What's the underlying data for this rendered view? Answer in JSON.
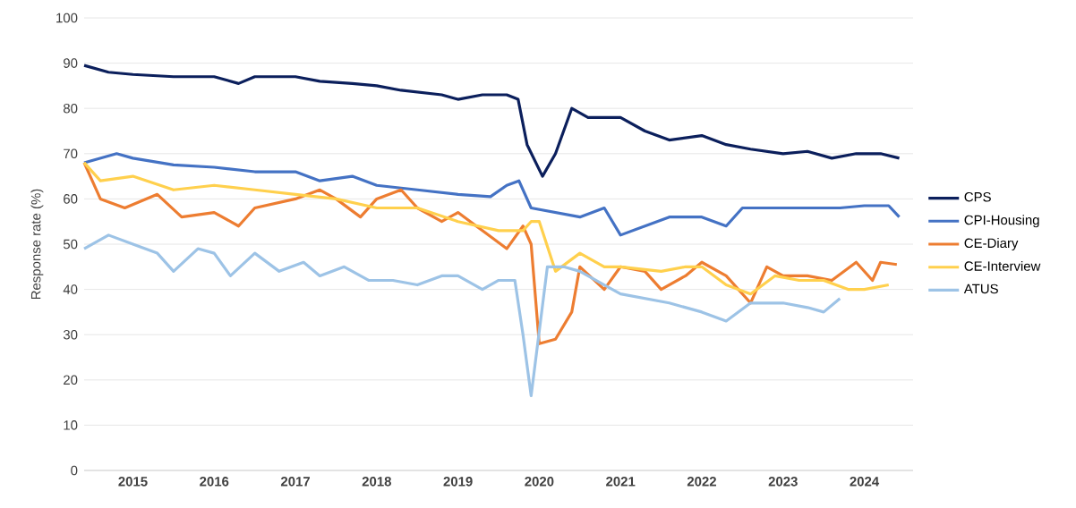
{
  "chart_data": {
    "type": "line",
    "ylabel": "Response rate (%)",
    "xlim": [
      2014.4,
      2024.6
    ],
    "xticks": [
      2015,
      2016,
      2017,
      2018,
      2019,
      2020,
      2021,
      2022,
      2023,
      2024
    ],
    "ylim": [
      0,
      100
    ],
    "yticks": [
      0,
      10,
      20,
      30,
      40,
      50,
      60,
      70,
      80,
      90,
      100
    ],
    "grid": "y",
    "legend": "right",
    "marker": "none",
    "line_style": "solid",
    "series": [
      {
        "name": "CPS",
        "color": "#0b1f5c",
        "x": [
          2014.4,
          2014.7,
          2015.0,
          2015.5,
          2016.0,
          2016.3,
          2016.5,
          2017.0,
          2017.3,
          2017.7,
          2018.0,
          2018.3,
          2018.8,
          2019.0,
          2019.3,
          2019.6,
          2019.74,
          2019.85,
          2020.04,
          2020.2,
          2020.4,
          2020.6,
          2021.0,
          2021.3,
          2021.6,
          2022.0,
          2022.3,
          2022.6,
          2023.0,
          2023.3,
          2023.6,
          2023.9,
          2024.2,
          2024.43
        ],
        "values": [
          89.5,
          88,
          87.5,
          87,
          87,
          85.5,
          87,
          87,
          86,
          85.5,
          85,
          84,
          83,
          82,
          83,
          83,
          82,
          72,
          65,
          70,
          80,
          78,
          78,
          75,
          73,
          74,
          72,
          71,
          70,
          70.5,
          69,
          70,
          70,
          69
        ]
      },
      {
        "name": "CPI-Housing",
        "color": "#4472c4",
        "x": [
          2014.4,
          2014.8,
          2015.0,
          2015.5,
          2016.0,
          2016.5,
          2017.0,
          2017.3,
          2017.7,
          2018.0,
          2018.5,
          2019.0,
          2019.4,
          2019.6,
          2019.75,
          2019.9,
          2020.2,
          2020.5,
          2020.8,
          2021.0,
          2021.3,
          2021.6,
          2022.0,
          2022.3,
          2022.5,
          2022.8,
          2023.0,
          2023.3,
          2023.7,
          2024.0,
          2024.3,
          2024.43
        ],
        "values": [
          68,
          70,
          69,
          67.5,
          67,
          66,
          66,
          64,
          65,
          63,
          62,
          61,
          60.5,
          63,
          64,
          58,
          57,
          56,
          58,
          52,
          54,
          56,
          56,
          54,
          58,
          58,
          58,
          58,
          58,
          58.5,
          58.5,
          56
        ]
      },
      {
        "name": "CE-Diary",
        "color": "#ed7d31",
        "x": [
          2014.4,
          2014.6,
          2014.9,
          2015.3,
          2015.6,
          2016.0,
          2016.3,
          2016.5,
          2017.0,
          2017.3,
          2017.5,
          2017.8,
          2018.0,
          2018.3,
          2018.5,
          2018.8,
          2019.0,
          2019.3,
          2019.6,
          2019.8,
          2019.9,
          2020.0,
          2020.2,
          2020.4,
          2020.5,
          2020.8,
          2021.0,
          2021.3,
          2021.5,
          2021.8,
          2022.0,
          2022.3,
          2022.6,
          2022.8,
          2023.0,
          2023.3,
          2023.6,
          2023.9,
          2024.1,
          2024.2,
          2024.4
        ],
        "values": [
          68,
          60,
          58,
          61,
          56,
          57,
          54,
          58,
          60,
          62,
          60,
          56,
          60,
          62,
          58,
          55,
          57,
          53,
          49,
          54,
          50,
          28,
          29,
          35,
          45,
          40,
          45,
          44,
          40,
          43,
          46,
          43,
          37,
          45,
          43,
          43,
          42,
          46,
          42,
          46,
          45.5
        ]
      },
      {
        "name": "CE-Interview",
        "color": "#ffd04d",
        "x": [
          2014.4,
          2014.6,
          2015.0,
          2015.5,
          2016.0,
          2016.5,
          2017.0,
          2017.5,
          2018.0,
          2018.5,
          2019.0,
          2019.5,
          2019.8,
          2019.9,
          2020.0,
          2020.2,
          2020.5,
          2020.8,
          2021.0,
          2021.5,
          2021.8,
          2022.0,
          2022.3,
          2022.6,
          2022.9,
          2023.2,
          2023.5,
          2023.8,
          2024.0,
          2024.3
        ],
        "values": [
          68,
          64,
          65,
          62,
          63,
          62,
          61,
          60,
          58,
          58,
          55,
          53,
          53,
          55,
          55,
          44,
          48,
          45,
          45,
          44,
          45,
          45,
          41,
          39,
          43,
          42,
          42,
          40,
          40,
          41
        ]
      },
      {
        "name": "ATUS",
        "color": "#9dc3e6",
        "x": [
          2014.4,
          2014.7,
          2015.0,
          2015.3,
          2015.5,
          2015.8,
          2016.0,
          2016.2,
          2016.5,
          2016.8,
          2017.1,
          2017.3,
          2017.6,
          2017.9,
          2018.2,
          2018.5,
          2018.8,
          2019.0,
          2019.3,
          2019.5,
          2019.7,
          2019.8,
          2019.9,
          2020.1,
          2020.3,
          2020.5,
          2020.8,
          2021.0,
          2021.3,
          2021.6,
          2022.0,
          2022.3,
          2022.6,
          2023.0,
          2023.3,
          2023.5,
          2023.7
        ],
        "values": [
          49,
          52,
          50,
          48,
          44,
          49,
          48,
          43,
          48,
          44,
          46,
          43,
          45,
          42,
          42,
          41,
          43,
          43,
          40,
          42,
          42,
          30,
          16.5,
          45,
          45,
          44,
          41,
          39,
          38,
          37,
          35,
          33,
          37,
          37,
          36,
          35,
          38
        ]
      }
    ]
  }
}
